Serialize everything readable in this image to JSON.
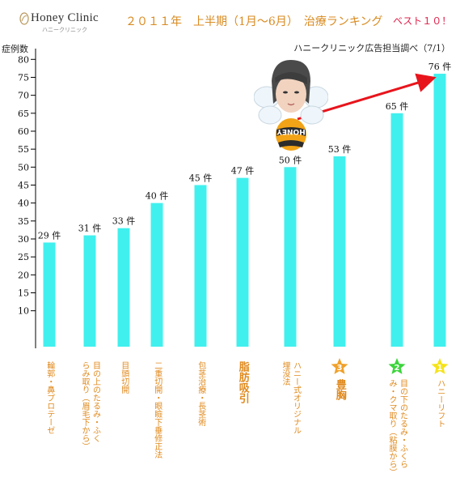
{
  "header": {
    "logo_text": "Honey Clinic",
    "logo_sub": "ハニークリニック",
    "title": "２０１１年　上半期（1月～6月）　治療ランキング",
    "best": "ベスト１０！",
    "source": "ハニークリニック広告担当調べ（7/1）"
  },
  "mascot": {
    "badge_text": "HONEY"
  },
  "colors": {
    "bar": "#40f0ee",
    "arrow": "#e8141c",
    "label": "#e08a1e",
    "title": "#d98a1f",
    "accent": "#e0204a"
  },
  "chart_data": {
    "type": "bar",
    "ylabel": "症例数",
    "ylim": [
      0,
      83
    ],
    "yticks": [
      10,
      15,
      20,
      25,
      30,
      35,
      40,
      45,
      50,
      55,
      60,
      65,
      70,
      75,
      80
    ],
    "categories": [
      "輪郭・鼻プロテーゼ",
      "目の上のたるみ・ふく\nらみ取り（眉毛下から）",
      "目頭切開",
      "二重切開・眼瞼下垂修正法",
      "包茎治療・長茎術",
      "脂肪吸引",
      "ハニー式オリジナル\n埋没法",
      "豊胸",
      "目の下のたるみ・ふくら\nみ・クマ取り（粘膜から）",
      "ハニーリフト"
    ],
    "values": [
      29,
      31,
      33,
      40,
      45,
      47,
      50,
      53,
      65,
      76
    ],
    "value_labels": [
      "29 件",
      "31 件",
      "33 件",
      "40 件",
      "45 件",
      "47 件",
      "50 件",
      "53 件",
      "65 件",
      "76 件"
    ],
    "ranks": [
      {
        "index": 9,
        "rank": "1",
        "color": "#f5e31a"
      },
      {
        "index": 8,
        "rank": "2",
        "color": "#3bd43b"
      },
      {
        "index": 7,
        "rank": "3",
        "color": "#f0a12a"
      }
    ]
  }
}
